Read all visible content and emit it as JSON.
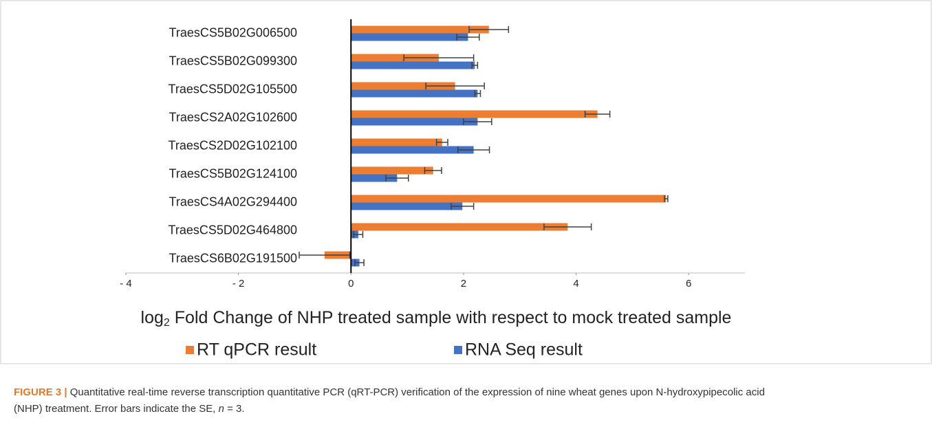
{
  "chart_data": {
    "type": "hbar",
    "categories": [
      "TraesCS5B02G006500",
      "TraesCS5B02G099300",
      "TraesCS5D02G105500",
      "TraesCS2A02G102600",
      "TraesCS2D02G102100",
      "TraesCS5B02G124100",
      "TraesCS4A02G294400",
      "TraesCS5D02G464800",
      "TraesCS6B02G191500"
    ],
    "series": [
      {
        "name": "RT qPCR result",
        "color": "#ED7D31",
        "values": [
          2.45,
          1.56,
          1.85,
          4.38,
          1.62,
          1.46,
          5.6,
          3.85,
          -0.47
        ],
        "errors": [
          0.35,
          0.62,
          0.52,
          0.22,
          0.1,
          0.15,
          0.03,
          0.42,
          0.45
        ]
      },
      {
        "name": "RNA Seq result",
        "color": "#4472C4",
        "values": [
          2.08,
          2.2,
          2.25,
          2.25,
          2.18,
          0.82,
          1.98,
          0.13,
          0.15
        ],
        "errors": [
          0.2,
          0.05,
          0.05,
          0.25,
          0.28,
          0.2,
          0.2,
          0.08,
          0.08
        ]
      }
    ],
    "xlim": [
      -4,
      7
    ],
    "xticks": [
      {
        "value": -4,
        "label": "- 4"
      },
      {
        "value": -2,
        "label": "- 2"
      },
      0,
      2,
      4,
      6
    ],
    "xlabel": {
      "base": "log",
      "sub": "2",
      "rest": " Fold Change of NHP treated sample with respect to mock treated sample"
    },
    "legend": "bottom"
  },
  "caption": {
    "label": "FIGURE 3 |",
    "text1": " Quantitative real-time reverse transcription quantitative PCR (qRT-PCR) verification of the expression of nine wheat genes upon N-hydroxypipecolic acid",
    "text2": "(NHP) treatment. Error bars indicate the SE, ",
    "n": "n",
    "text3": " = 3."
  }
}
